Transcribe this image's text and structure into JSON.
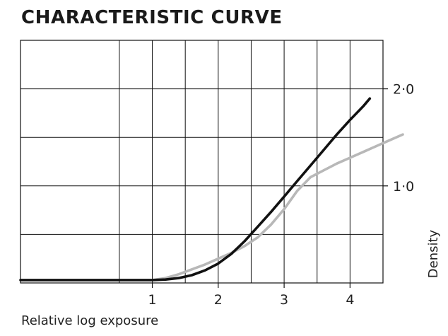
{
  "chart_data": {
    "type": "line",
    "title": "CHARACTERISTIC CURVE",
    "xlabel": "Relative log exposure",
    "ylabel": "Density",
    "xlim": [
      -1,
      4.5
    ],
    "ylim": [
      0,
      2.5
    ],
    "x_ticks": [
      1,
      2,
      3,
      4
    ],
    "x_tick_labels": [
      "1",
      "2",
      "3",
      "4"
    ],
    "y_ticks": [
      1.0,
      2.0
    ],
    "y_tick_labels": [
      "1·0",
      "2·0"
    ],
    "x_grid": [
      0.5,
      1,
      1.5,
      2,
      2.5,
      3,
      3.5,
      4
    ],
    "y_grid": [
      0.5,
      1,
      1.5,
      2,
      2.5
    ],
    "grid": true,
    "y_axis_side": "right",
    "series": [
      {
        "color": "#111111",
        "x": [
          -1.0,
          0.0,
          1.0,
          1.2,
          1.4,
          1.6,
          1.8,
          2.0,
          2.2,
          2.4,
          2.6,
          2.8,
          3.0,
          3.2,
          3.4,
          3.6,
          3.8,
          4.0,
          4.2,
          4.3
        ],
        "y": [
          0.03,
          0.03,
          0.03,
          0.035,
          0.05,
          0.08,
          0.13,
          0.2,
          0.3,
          0.43,
          0.58,
          0.73,
          0.89,
          1.05,
          1.21,
          1.37,
          1.53,
          1.68,
          1.82,
          1.9
        ]
      },
      {
        "color": "#b8b8b8",
        "x": [
          1.0,
          1.2,
          1.4,
          1.6,
          1.8,
          2.0,
          2.2,
          2.4,
          2.6,
          2.8,
          3.0,
          3.2,
          3.4,
          3.6,
          3.8,
          4.0,
          4.2,
          4.4,
          4.6,
          4.8
        ],
        "y": [
          0.03,
          0.05,
          0.09,
          0.14,
          0.19,
          0.25,
          0.31,
          0.38,
          0.47,
          0.6,
          0.76,
          0.95,
          1.09,
          1.16,
          1.23,
          1.29,
          1.35,
          1.41,
          1.47,
          1.53
        ]
      }
    ]
  }
}
